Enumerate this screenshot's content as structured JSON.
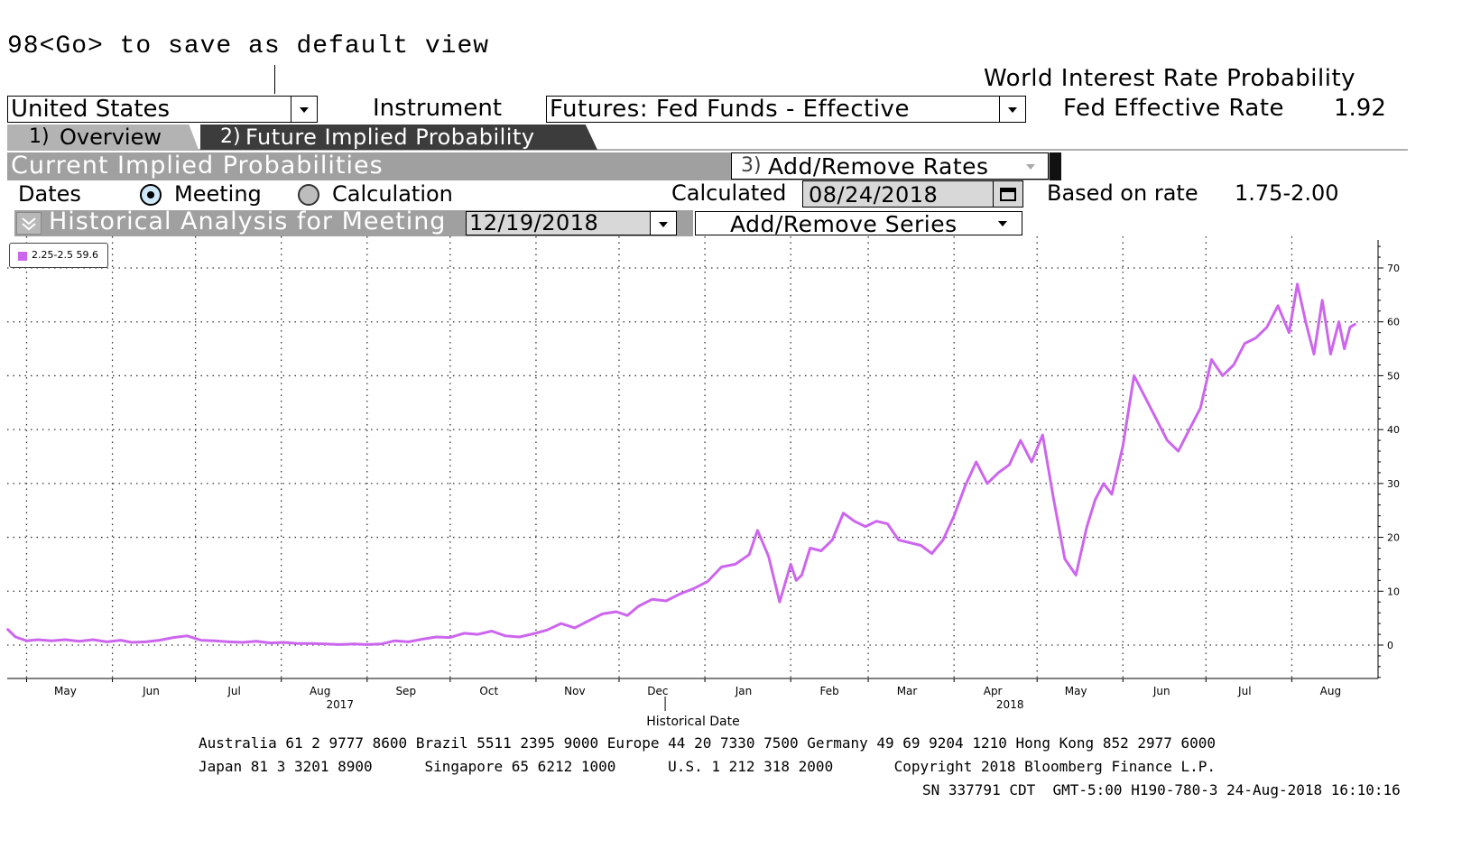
{
  "header": {
    "hint": "98<Go> to save as default view",
    "title": "World Interest Rate Probability",
    "rate_label": "Fed Effective Rate",
    "rate_value": "1.92"
  },
  "controls": {
    "country": "United States",
    "instrument_label": "Instrument",
    "instrument": "Futures: Fed Funds - Effective"
  },
  "tabs": [
    {
      "num": "1)",
      "label": "Overview",
      "active": false
    },
    {
      "num": "2)",
      "label": "Future Implied Probability",
      "active": true
    }
  ],
  "section": {
    "title": "Current Implied Probabilities",
    "add_rates_num": "3)",
    "add_rates_label": "Add/Remove Rates",
    "dates_label": "Dates",
    "radio_meeting": "Meeting",
    "radio_calculation": "Calculation",
    "calculated_label": "Calculated",
    "calculated_value": "08/24/2018",
    "based_label": "Based on rate",
    "based_value": "1.75-2.00"
  },
  "historical": {
    "title": "Historical Analysis for Meeting",
    "meeting_date": "12/19/2018",
    "add_series_label": "Add/Remove Series"
  },
  "legend": {
    "entry": "2.25-2.5 59.6",
    "color": "#cc66ee"
  },
  "chart_data": {
    "type": "line",
    "xlabel": "Historical Date",
    "ylabel": "",
    "ylim": [
      -6,
      75
    ],
    "y_ticks": [
      0,
      10,
      20,
      30,
      40,
      50,
      60,
      70
    ],
    "x_month_labels": [
      "May",
      "Jun",
      "Jul",
      "Aug",
      "Sep",
      "Oct",
      "Nov",
      "Dec",
      "Jan",
      "Feb",
      "Mar",
      "Apr",
      "May",
      "Jun",
      "Jul",
      "Aug"
    ],
    "year_labels": [
      "2017",
      "2018"
    ],
    "grid": true,
    "series": [
      {
        "name": "2.25-2.5",
        "color": "#cc66ee",
        "x": [
          "2017-04-24",
          "2017-04-27",
          "2017-05-01",
          "2017-05-05",
          "2017-05-10",
          "2017-05-15",
          "2017-05-20",
          "2017-05-25",
          "2017-05-30",
          "2017-06-04",
          "2017-06-08",
          "2017-06-13",
          "2017-06-18",
          "2017-06-23",
          "2017-06-28",
          "2017-07-03",
          "2017-07-08",
          "2017-07-13",
          "2017-07-18",
          "2017-07-23",
          "2017-07-28",
          "2017-08-02",
          "2017-08-07",
          "2017-08-12",
          "2017-08-17",
          "2017-08-22",
          "2017-08-27",
          "2017-09-01",
          "2017-09-06",
          "2017-09-11",
          "2017-09-16",
          "2017-09-21",
          "2017-09-26",
          "2017-10-01",
          "2017-10-06",
          "2017-10-11",
          "2017-10-16",
          "2017-10-21",
          "2017-10-26",
          "2017-10-31",
          "2017-11-05",
          "2017-11-10",
          "2017-11-15",
          "2017-11-20",
          "2017-11-25",
          "2017-11-30",
          "2017-12-04",
          "2017-12-08",
          "2017-12-13",
          "2017-12-18",
          "2017-12-23",
          "2017-12-28",
          "2018-01-02",
          "2018-01-07",
          "2018-01-12",
          "2018-01-17",
          "2018-01-20",
          "2018-01-24",
          "2018-01-28",
          "2018-02-01",
          "2018-02-03",
          "2018-02-05",
          "2018-02-08",
          "2018-02-12",
          "2018-02-16",
          "2018-02-20",
          "2018-02-24",
          "2018-02-28",
          "2018-03-04",
          "2018-03-08",
          "2018-03-12",
          "2018-03-16",
          "2018-03-20",
          "2018-03-24",
          "2018-03-28",
          "2018-04-01",
          "2018-04-05",
          "2018-04-09",
          "2018-04-13",
          "2018-04-17",
          "2018-04-21",
          "2018-04-25",
          "2018-04-29",
          "2018-05-03",
          "2018-05-07",
          "2018-05-11",
          "2018-05-15",
          "2018-05-19",
          "2018-05-22",
          "2018-05-25",
          "2018-05-28",
          "2018-06-01",
          "2018-06-05",
          "2018-06-09",
          "2018-06-13",
          "2018-06-17",
          "2018-06-21",
          "2018-06-25",
          "2018-06-29",
          "2018-07-03",
          "2018-07-07",
          "2018-07-11",
          "2018-07-15",
          "2018-07-19",
          "2018-07-23",
          "2018-07-27",
          "2018-07-31",
          "2018-08-03",
          "2018-08-06",
          "2018-08-09",
          "2018-08-12",
          "2018-08-15",
          "2018-08-18",
          "2018-08-20",
          "2018-08-22",
          "2018-08-24"
        ],
        "y": [
          3,
          1.5,
          0.8,
          1,
          0.8,
          1,
          0.7,
          1,
          0.6,
          0.9,
          0.5,
          0.6,
          0.9,
          1.4,
          1.7,
          0.9,
          0.8,
          0.6,
          0.5,
          0.7,
          0.4,
          0.5,
          0.3,
          0.3,
          0.2,
          0.1,
          0.2,
          0.1,
          0.2,
          0.8,
          0.6,
          1.1,
          1.5,
          1.4,
          2.2,
          2,
          2.6,
          1.7,
          1.5,
          2.1,
          2.8,
          4,
          3.2,
          4.5,
          5.8,
          6.2,
          5.5,
          7.2,
          8.5,
          8.2,
          9.5,
          10.5,
          11.8,
          14.5,
          15,
          16.8,
          21.3,
          16.5,
          8,
          15,
          12,
          13,
          18,
          17.5,
          19.5,
          24.5,
          23,
          22,
          23,
          22.5,
          19.5,
          19,
          18.5,
          17,
          19.5,
          24,
          29.5,
          34,
          30,
          32,
          33.5,
          38,
          34,
          39,
          27,
          16,
          13,
          22,
          27,
          30,
          28,
          37,
          50,
          46,
          42,
          38,
          36,
          40,
          44,
          53,
          50,
          52,
          56,
          57,
          59,
          63,
          58,
          67,
          60,
          54,
          64,
          54,
          60,
          55,
          59,
          59.6
        ]
      }
    ]
  },
  "footer": {
    "line1": "Australia 61 2 9777 8600 Brazil 5511 2395 9000 Europe 44 20 7330 7500 Germany 49 69 9204 1210 Hong Kong 852 2977 6000",
    "line2": "Japan 81 3 3201 8900      Singapore 65 6212 1000      U.S. 1 212 318 2000       Copyright 2018 Bloomberg Finance L.P.",
    "line3": "SN 337791 CDT  GMT-5:00 H190-780-3 24-Aug-2018 16:10:16"
  }
}
